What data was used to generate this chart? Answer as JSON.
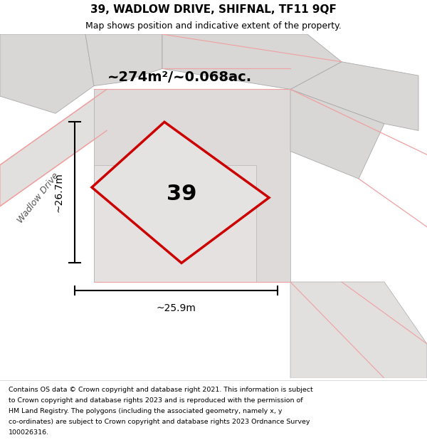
{
  "title_line1": "39, WADLOW DRIVE, SHIFNAL, TF11 9QF",
  "title_line2": "Map shows position and indicative extent of the property.",
  "area_text": "~274m²/~0.068ac.",
  "plot_number": "39",
  "dim_height": "~26.7m",
  "dim_width": "~25.9m",
  "street_label": "Wadlow Drive",
  "footer_lines": [
    "Contains OS data © Crown copyright and database right 2021. This information is subject",
    "to Crown copyright and database rights 2023 and is reproduced with the permission of",
    "HM Land Registry. The polygons (including the associated geometry, namely x, y",
    "co-ordinates) are subject to Crown copyright and database rights 2023 Ordnance Survey",
    "100026316."
  ],
  "bg_color": "#f2f0f0",
  "red_outline": "#cc0000",
  "light_red": "#f0a0a0",
  "plot_fill": "#e8e5e5",
  "bld_fill": "#d9d6d6",
  "road_fill": "#e2dfdf",
  "gray_outline": "#aaaaaa"
}
